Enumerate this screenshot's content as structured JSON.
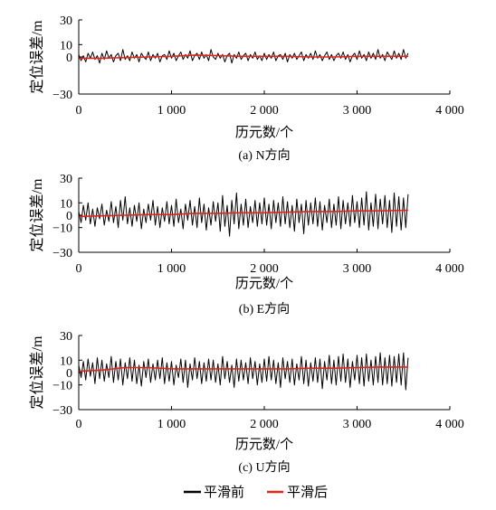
{
  "legend": {
    "position": "bottom",
    "items": [
      {
        "label": "平滑前",
        "color": "#000000"
      },
      {
        "label": "平滑后",
        "color": "#e0261c"
      }
    ]
  },
  "chart_data": [
    {
      "type": "line",
      "caption": "(a) N方向",
      "xlabel": "历元数/个",
      "ylabel": "定位误差/m",
      "xlim": [
        0,
        4000
      ],
      "ylim": [
        -30,
        30
      ],
      "xticks": [
        0,
        1000,
        2000,
        3000,
        4000
      ],
      "xtick_labels": [
        "0",
        "1 000",
        "2 000",
        "3 000",
        "4 000"
      ],
      "yticks": [
        30,
        10,
        0,
        -30
      ],
      "ytick_labels": [
        "30",
        "10",
        "0",
        "−30"
      ],
      "grid": false,
      "series": [
        {
          "name": "平滑前",
          "color": "#000000",
          "x": [
            0,
            25,
            50,
            75,
            100,
            125,
            150,
            175,
            200,
            225,
            250,
            275,
            300,
            325,
            350,
            375,
            400,
            425,
            450,
            475,
            500,
            525,
            550,
            575,
            600,
            625,
            650,
            675,
            700,
            725,
            750,
            775,
            800,
            825,
            850,
            875,
            900,
            925,
            950,
            975,
            1000,
            1025,
            1050,
            1075,
            1100,
            1125,
            1150,
            1175,
            1200,
            1225,
            1250,
            1275,
            1300,
            1325,
            1350,
            1375,
            1400,
            1425,
            1450,
            1475,
            1500,
            1525,
            1550,
            1575,
            1600,
            1625,
            1650,
            1675,
            1700,
            1725,
            1750,
            1775,
            1800,
            1825,
            1850,
            1875,
            1900,
            1925,
            1950,
            1975,
            2000,
            2025,
            2050,
            2075,
            2100,
            2125,
            2150,
            2175,
            2200,
            2225,
            2250,
            2275,
            2300,
            2325,
            2350,
            2375,
            2400,
            2425,
            2450,
            2475,
            2500,
            2525,
            2550,
            2575,
            2600,
            2625,
            2650,
            2675,
            2700,
            2725,
            2750,
            2775,
            2800,
            2825,
            2850,
            2875,
            2900,
            2925,
            2950,
            2975,
            3000,
            3025,
            3050,
            3075,
            3100,
            3125,
            3150,
            3175,
            3200,
            3225,
            3250,
            3275,
            3300,
            3325,
            3350,
            3375,
            3400,
            3425,
            3450,
            3475,
            3500,
            3525,
            3550
          ],
          "values": [
            2,
            -3,
            1,
            -4,
            3,
            -1,
            4,
            -2,
            1,
            -5,
            3,
            -2,
            5,
            -1,
            2,
            -4,
            1,
            3,
            -3,
            6,
            -2,
            1,
            -3,
            4,
            -1,
            2,
            -4,
            3,
            0,
            -2,
            4,
            -3,
            2,
            -1,
            3,
            -4,
            1,
            2,
            -2,
            5,
            -1,
            3,
            -3,
            1,
            4,
            -2,
            2,
            -1,
            5,
            -3,
            1,
            3,
            -2,
            4,
            -1,
            2,
            -3,
            6,
            0,
            -2,
            3,
            -1,
            2,
            -4,
            1,
            3,
            -5,
            2,
            -1,
            4,
            -2,
            1,
            3,
            -3,
            2,
            -1,
            4,
            -2,
            1,
            -3,
            3,
            -2,
            2,
            -1,
            4,
            -3,
            1,
            2,
            -2,
            3,
            -4,
            2,
            -1,
            3,
            -2,
            1,
            4,
            -3,
            2,
            -1,
            3,
            -2,
            5,
            -1,
            2,
            -3,
            1,
            4,
            -2,
            2,
            -3,
            1,
            3,
            -1,
            4,
            -2,
            2,
            -4,
            1,
            3,
            -2,
            5,
            -1,
            2,
            -3,
            4,
            -1,
            3,
            -2,
            6,
            -1,
            2,
            -3,
            4,
            1,
            -2,
            5,
            -1,
            3,
            -2,
            6,
            -1,
            3
          ]
        },
        {
          "name": "平滑后",
          "color": "#e0261c",
          "x": [
            0,
            250,
            500,
            750,
            1000,
            1250,
            1500,
            1750,
            2000,
            2250,
            2500,
            2750,
            3000,
            3250,
            3550
          ],
          "values": [
            -1,
            -1,
            -0.5,
            0,
            0.5,
            1.5,
            1,
            0.5,
            0.5,
            0.5,
            0,
            0,
            0.5,
            0.5,
            0.5
          ]
        }
      ]
    },
    {
      "type": "line",
      "caption": "(b) E方向",
      "xlabel": "历元数/个",
      "ylabel": "定位误差/m",
      "xlim": [
        0,
        4000
      ],
      "ylim": [
        -30,
        30
      ],
      "xticks": [
        0,
        1000,
        2000,
        3000,
        4000
      ],
      "xtick_labels": [
        "0",
        "1 000",
        "2 000",
        "3 000",
        "4 000"
      ],
      "yticks": [
        30,
        10,
        0,
        -10,
        -30
      ],
      "ytick_labels": [
        "30",
        "10",
        "0",
        "−10",
        "−30"
      ],
      "grid": false,
      "series": [
        {
          "name": "平滑前",
          "color": "#000000",
          "x": [
            0,
            25,
            50,
            75,
            100,
            125,
            150,
            175,
            200,
            225,
            250,
            275,
            300,
            325,
            350,
            375,
            400,
            425,
            450,
            475,
            500,
            525,
            550,
            575,
            600,
            625,
            650,
            675,
            700,
            725,
            750,
            775,
            800,
            825,
            850,
            875,
            900,
            925,
            950,
            975,
            1000,
            1025,
            1050,
            1075,
            1100,
            1125,
            1150,
            1175,
            1200,
            1225,
            1250,
            1275,
            1300,
            1325,
            1350,
            1375,
            1400,
            1425,
            1450,
            1475,
            1500,
            1525,
            1550,
            1575,
            1600,
            1625,
            1650,
            1675,
            1700,
            1725,
            1750,
            1775,
            1800,
            1825,
            1850,
            1875,
            1900,
            1925,
            1950,
            1975,
            2000,
            2025,
            2050,
            2075,
            2100,
            2125,
            2150,
            2175,
            2200,
            2225,
            2250,
            2275,
            2300,
            2325,
            2350,
            2375,
            2400,
            2425,
            2450,
            2475,
            2500,
            2525,
            2550,
            2575,
            2600,
            2625,
            2650,
            2675,
            2700,
            2725,
            2750,
            2775,
            2800,
            2825,
            2850,
            2875,
            2900,
            2925,
            2950,
            2975,
            3000,
            3025,
            3050,
            3075,
            3100,
            3125,
            3150,
            3175,
            3200,
            3225,
            3250,
            3275,
            3300,
            3325,
            3350,
            3375,
            3400,
            3425,
            3450,
            3475,
            3500,
            3525,
            3550
          ],
          "values": [
            3,
            -6,
            8,
            -4,
            10,
            -7,
            5,
            -9,
            6,
            -3,
            9,
            -8,
            4,
            -5,
            11,
            -6,
            7,
            -10,
            12,
            -4,
            15,
            -7,
            6,
            -9,
            8,
            -5,
            10,
            -11,
            5,
            -6,
            9,
            -4,
            12,
            -8,
            7,
            -10,
            6,
            -5,
            11,
            -7,
            8,
            -9,
            13,
            -6,
            5,
            -11,
            9,
            -4,
            12,
            -8,
            7,
            -10,
            14,
            -6,
            9,
            -12,
            6,
            -8,
            11,
            -5,
            10,
            -13,
            16,
            -9,
            8,
            -17,
            12,
            -7,
            18,
            -11,
            9,
            -8,
            13,
            -10,
            7,
            -6,
            12,
            -9,
            10,
            -7,
            14,
            -8,
            9,
            -11,
            12,
            -6,
            10,
            -9,
            15,
            -7,
            11,
            -10,
            8,
            -13,
            13,
            -6,
            9,
            -15,
            12,
            -8,
            10,
            -7,
            14,
            -9,
            11,
            -12,
            8,
            -6,
            13,
            -10,
            9,
            -8,
            15,
            -11,
            12,
            -7,
            10,
            -9,
            16,
            -6,
            11,
            -10,
            14,
            -8,
            19,
            -12,
            10,
            -9,
            17,
            -11,
            13,
            -7,
            16,
            -10,
            12,
            -14,
            18,
            -9,
            15,
            -12,
            14,
            -10,
            17
          ]
        },
        {
          "name": "平滑后",
          "color": "#e0261c",
          "x": [
            0,
            250,
            500,
            750,
            1000,
            1250,
            1500,
            1750,
            2000,
            2250,
            2500,
            2750,
            3000,
            3250,
            3550
          ],
          "values": [
            -1,
            -0.5,
            0,
            0.5,
            0.5,
            1.5,
            1.5,
            2,
            2,
            2.5,
            3,
            3,
            3.5,
            3.5,
            4
          ]
        }
      ]
    },
    {
      "type": "line",
      "caption": "(c) U方向",
      "xlabel": "历元数/个",
      "ylabel": "定位误差/m",
      "xlim": [
        0,
        4000
      ],
      "ylim": [
        -30,
        30
      ],
      "xticks": [
        0,
        1000,
        2000,
        3000,
        4000
      ],
      "xtick_labels": [
        "0",
        "1 000",
        "2 000",
        "3 000",
        "4 000"
      ],
      "yticks": [
        30,
        10,
        0,
        -10,
        -30
      ],
      "ytick_labels": [
        "30",
        "10",
        "0",
        "−10",
        "−30"
      ],
      "grid": false,
      "series": [
        {
          "name": "平滑前",
          "color": "#000000",
          "x": [
            0,
            25,
            50,
            75,
            100,
            125,
            150,
            175,
            200,
            225,
            250,
            275,
            300,
            325,
            350,
            375,
            400,
            425,
            450,
            475,
            500,
            525,
            550,
            575,
            600,
            625,
            650,
            675,
            700,
            725,
            750,
            775,
            800,
            825,
            850,
            875,
            900,
            925,
            950,
            975,
            1000,
            1025,
            1050,
            1075,
            1100,
            1125,
            1150,
            1175,
            1200,
            1225,
            1250,
            1275,
            1300,
            1325,
            1350,
            1375,
            1400,
            1425,
            1450,
            1475,
            1500,
            1525,
            1550,
            1575,
            1600,
            1625,
            1650,
            1675,
            1700,
            1725,
            1750,
            1775,
            1800,
            1825,
            1850,
            1875,
            1900,
            1925,
            1950,
            1975,
            2000,
            2025,
            2050,
            2075,
            2100,
            2125,
            2150,
            2175,
            2200,
            2225,
            2250,
            2275,
            2300,
            2325,
            2350,
            2375,
            2400,
            2425,
            2450,
            2475,
            2500,
            2525,
            2550,
            2575,
            2600,
            2625,
            2650,
            2675,
            2700,
            2725,
            2750,
            2775,
            2800,
            2825,
            2850,
            2875,
            2900,
            2925,
            2950,
            2975,
            3000,
            3025,
            3050,
            3075,
            3100,
            3125,
            3150,
            3175,
            3200,
            3225,
            3250,
            3275,
            3300,
            3325,
            3350,
            3375,
            3400,
            3425,
            3450,
            3475,
            3500,
            3525,
            3550
          ],
          "values": [
            6,
            -4,
            9,
            -6,
            11,
            -3,
            8,
            -9,
            12,
            -5,
            10,
            -7,
            7,
            -4,
            13,
            -8,
            9,
            -6,
            11,
            -10,
            8,
            -5,
            12,
            -7,
            10,
            -9,
            6,
            -11,
            9,
            -4,
            11,
            -8,
            7,
            -6,
            10,
            -5,
            12,
            -9,
            8,
            -7,
            9,
            -10,
            6,
            -4,
            11,
            -8,
            10,
            -12,
            7,
            -6,
            12,
            -5,
            9,
            -9,
            8,
            -7,
            11,
            -6,
            10,
            -8,
            7,
            -10,
            13,
            -5,
            9,
            -8,
            6,
            -12,
            11,
            -7,
            10,
            -6,
            8,
            -9,
            12,
            -5,
            9,
            -10,
            7,
            -8,
            11,
            -7,
            13,
            -6,
            10,
            -9,
            8,
            -12,
            12,
            -5,
            9,
            -8,
            11,
            -10,
            7,
            -6,
            13,
            -9,
            10,
            -11,
            8,
            -7,
            12,
            -8,
            11,
            -13,
            9,
            -6,
            14,
            -9,
            10,
            -10,
            13,
            -7,
            15,
            -8,
            11,
            -12,
            9,
            -6,
            14,
            -9,
            12,
            -11,
            15,
            -7,
            10,
            -10,
            13,
            -8,
            16,
            -10,
            12,
            -9,
            14,
            -11,
            13,
            -8,
            15,
            -10,
            16,
            -14,
            12
          ]
        },
        {
          "name": "平滑后",
          "color": "#e0261c",
          "x": [
            0,
            250,
            500,
            750,
            1000,
            1250,
            1500,
            1750,
            2000,
            2250,
            2500,
            2750,
            3000,
            3250,
            3550
          ],
          "values": [
            1,
            2,
            4,
            4,
            3,
            3,
            3,
            3,
            3,
            3,
            3.5,
            3.5,
            4,
            4.5,
            4.5
          ]
        }
      ]
    }
  ]
}
